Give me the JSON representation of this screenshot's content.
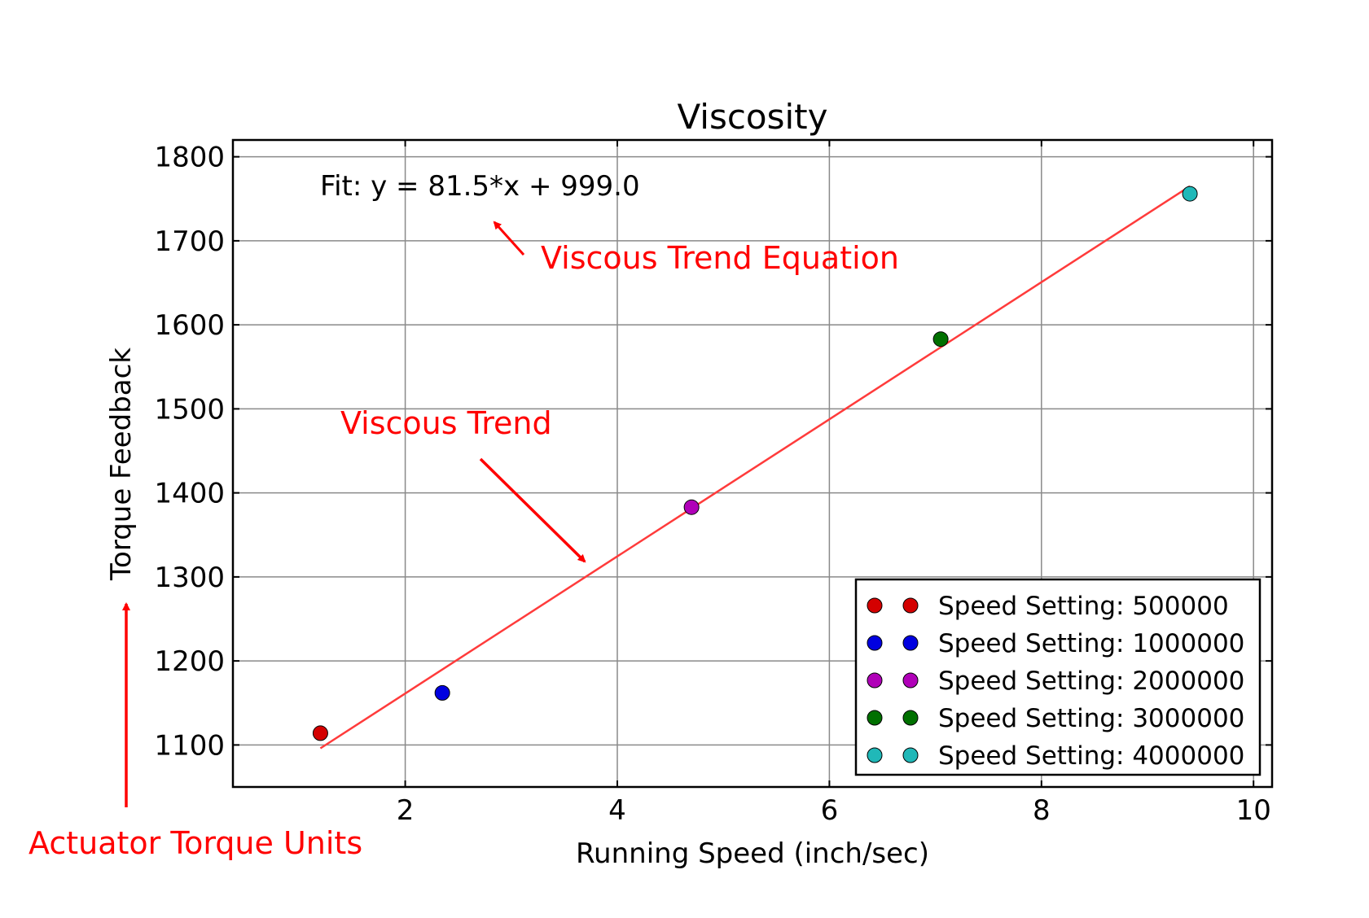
{
  "chart_data": {
    "type": "scatter",
    "title": "Viscosity",
    "xlabel": "Running Speed (inch/sec)",
    "ylabel": "Torque Feedback",
    "xlim": [
      0.375,
      10.175
    ],
    "ylim": [
      1050,
      1820
    ],
    "xticks": [
      2,
      4,
      6,
      8,
      10
    ],
    "yticks": [
      1100,
      1200,
      1300,
      1400,
      1500,
      1600,
      1700,
      1800
    ],
    "grid": true,
    "legend_position": "bottom-right",
    "series": [
      {
        "name": "Speed Setting: 500000",
        "color": "#d40000",
        "points": [
          {
            "x": 1.2,
            "y": 1114
          }
        ]
      },
      {
        "name": "Speed Setting: 1000000",
        "color": "#0000e0",
        "points": [
          {
            "x": 2.35,
            "y": 1162
          }
        ]
      },
      {
        "name": "Speed Setting: 2000000",
        "color": "#b000b8",
        "points": [
          {
            "x": 4.7,
            "y": 1383
          }
        ]
      },
      {
        "name": "Speed Setting: 3000000",
        "color": "#007000",
        "points": [
          {
            "x": 7.05,
            "y": 1583
          }
        ]
      },
      {
        "name": "Speed Setting: 4000000",
        "color": "#20b8b8",
        "points": [
          {
            "x": 9.4,
            "y": 1756
          }
        ]
      }
    ],
    "fit_line": {
      "color": "#ff3b3b",
      "x": [
        1.2,
        9.4
      ],
      "y": [
        1096,
        1765
      ]
    },
    "fit_label": "Fit: y = 81.5*x + 999.0",
    "annotations": [
      {
        "text": "Viscous Trend Equation",
        "color": "#ff0000"
      },
      {
        "text": "Viscous Trend",
        "color": "#ff0000"
      },
      {
        "text": "Actuator Torque Units",
        "color": "#ff0000"
      }
    ]
  }
}
